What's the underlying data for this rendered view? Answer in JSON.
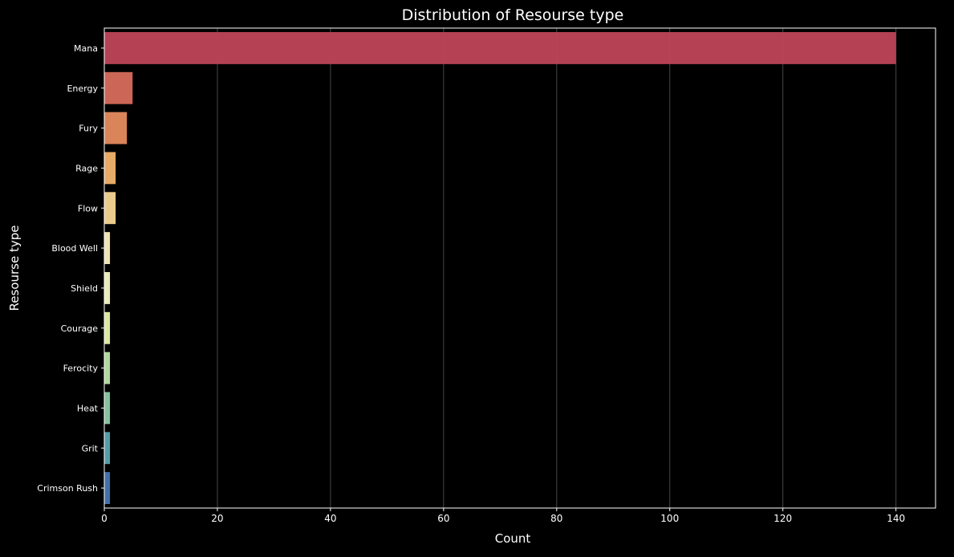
{
  "chart_data": {
    "type": "bar",
    "orientation": "horizontal",
    "title": "Distribution of Resourse type",
    "xlabel": "Count",
    "ylabel": "Resourse type",
    "categories": [
      "Mana",
      "Energy",
      "Fury",
      "Rage",
      "Flow",
      "Blood Well",
      "Shield",
      "Courage",
      "Ferocity",
      "Heat",
      "Grit",
      "Crimson Rush"
    ],
    "values": [
      140,
      5,
      4,
      2,
      2,
      1,
      1,
      1,
      1,
      1,
      1,
      1
    ],
    "colors": [
      "#bf4458",
      "#d76b5b",
      "#e68b5e",
      "#f3b46d",
      "#f8d694",
      "#fdf0bb",
      "#f8f8c3",
      "#e7f4ac",
      "#bde3a5",
      "#8ccca6",
      "#5aa4b2",
      "#4477b4"
    ],
    "xticks": [
      0,
      20,
      40,
      60,
      80,
      100,
      120,
      140
    ],
    "xlim": [
      0,
      147
    ],
    "grid": "vertical",
    "background": "#000000",
    "text_color": "#ffffff"
  }
}
